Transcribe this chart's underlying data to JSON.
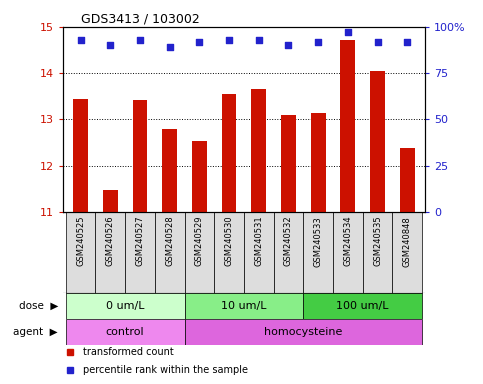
{
  "title": "GDS3413 / 103002",
  "samples": [
    "GSM240525",
    "GSM240526",
    "GSM240527",
    "GSM240528",
    "GSM240529",
    "GSM240530",
    "GSM240531",
    "GSM240532",
    "GSM240533",
    "GSM240534",
    "GSM240535",
    "GSM240848"
  ],
  "bar_values": [
    13.45,
    11.48,
    13.42,
    12.78,
    12.53,
    13.55,
    13.65,
    13.1,
    13.13,
    14.72,
    14.05,
    12.37
  ],
  "dot_values": [
    93,
    90,
    93,
    89,
    92,
    93,
    93,
    90,
    92,
    97,
    92,
    92
  ],
  "bar_color": "#cc1100",
  "dot_color": "#2222cc",
  "ylim_left": [
    11,
    15
  ],
  "ylim_right": [
    0,
    100
  ],
  "yticks_left": [
    11,
    12,
    13,
    14,
    15
  ],
  "yticks_right": [
    0,
    25,
    50,
    75,
    100
  ],
  "ytick_labels_right": [
    "0",
    "25",
    "50",
    "75",
    "100%"
  ],
  "dose_groups": [
    {
      "label": "0 um/L",
      "start": 0,
      "end": 3,
      "color": "#ccffcc"
    },
    {
      "label": "10 um/L",
      "start": 4,
      "end": 7,
      "color": "#88ee88"
    },
    {
      "label": "100 um/L",
      "start": 8,
      "end": 11,
      "color": "#44cc44"
    }
  ],
  "agent_groups": [
    {
      "label": "control",
      "start": 0,
      "end": 3,
      "color": "#ee88ee"
    },
    {
      "label": "homocysteine",
      "start": 4,
      "end": 11,
      "color": "#dd66dd"
    }
  ],
  "legend_items": [
    {
      "label": "transformed count",
      "color": "#cc1100"
    },
    {
      "label": "percentile rank within the sample",
      "color": "#2222cc"
    }
  ],
  "dose_label": "dose",
  "agent_label": "agent",
  "sample_box_color": "#dddddd",
  "bg_color": "#ffffff",
  "tick_label_color_left": "#cc1100",
  "tick_label_color_right": "#2222cc",
  "bar_width": 0.5,
  "n_samples": 12
}
